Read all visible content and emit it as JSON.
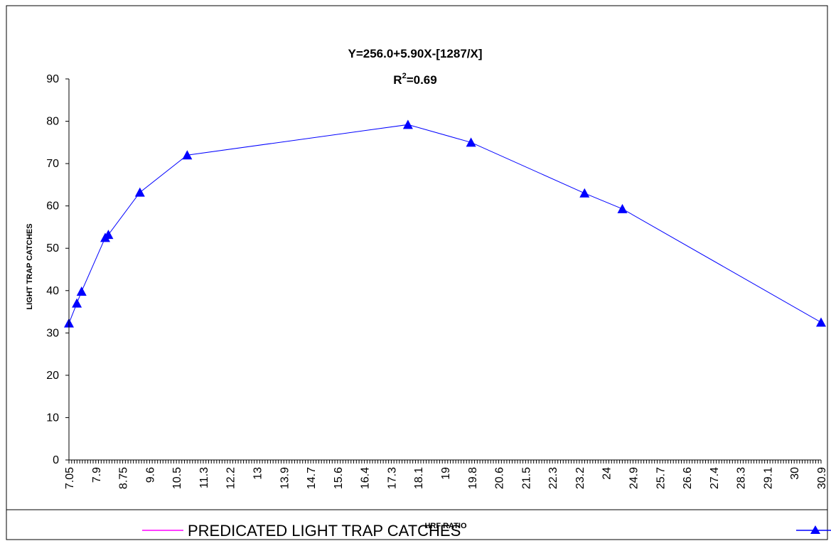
{
  "chart_data": {
    "type": "line",
    "equation": "Y=256.0+5.90X-[1287/X]",
    "r2_prefix": "R",
    "r2_exponent": "2",
    "r2_value": "=0.69",
    "xlabel": "HRF RATIO",
    "ylabel": "LIGHT TRAP CATCHES",
    "ylim": [
      0,
      90
    ],
    "yticks": [
      0,
      10,
      20,
      30,
      40,
      50,
      60,
      70,
      80,
      90
    ],
    "xlim": [
      7.05,
      30.9
    ],
    "xtick_labels": [
      "7.05",
      "7.9",
      "8.75",
      "9.6",
      "10.5",
      "11.3",
      "12.2",
      "13",
      "13.9",
      "14.7",
      "15.6",
      "16.4",
      "17.3",
      "18.1",
      "19",
      "19.8",
      "20.6",
      "21.5",
      "22.3",
      "23.2",
      "24",
      "24.9",
      "25.7",
      "26.6",
      "27.4",
      "28.3",
      "29.1",
      "30",
      "30.9"
    ],
    "grid": false,
    "legend_position": "bottom",
    "colors": {
      "predicted": "#ff00ff",
      "observed": "#0000ff"
    },
    "series": [
      {
        "name": "PREDICATED LIGHT TRAP CATCHES",
        "style": "line",
        "formula": {
          "a": 256.0,
          "b": 5.9,
          "c": 1287
        }
      },
      {
        "name": "",
        "style": "line-with-triangle-markers",
        "points": [
          [
            7.05,
            32.3
          ],
          [
            7.3,
            37.0
          ],
          [
            7.45,
            39.8
          ],
          [
            8.2,
            52.5
          ],
          [
            8.3,
            53.2
          ],
          [
            9.3,
            63.2
          ],
          [
            10.8,
            72.0
          ],
          [
            17.8,
            79.2
          ],
          [
            19.8,
            75.0
          ],
          [
            23.4,
            63.0
          ],
          [
            24.6,
            59.3
          ],
          [
            30.9,
            32.5
          ]
        ]
      }
    ]
  }
}
